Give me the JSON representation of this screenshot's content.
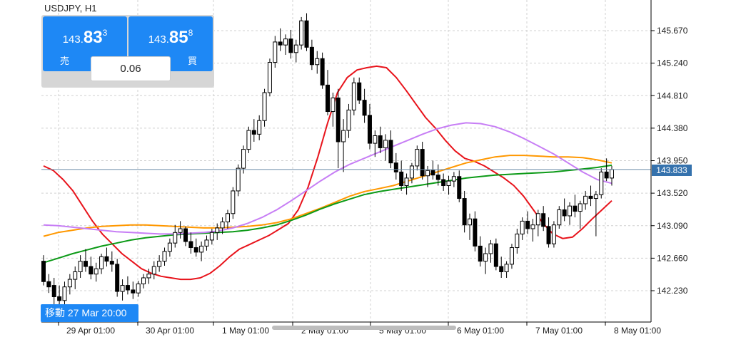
{
  "symbol": "USDJPY, H1",
  "trade_panel": {
    "sell": {
      "price_small": "143.",
      "price_big": "83",
      "price_sup": "3",
      "label": "売"
    },
    "buy": {
      "price_small": "143.",
      "price_big": "85",
      "price_sup": "8",
      "label": "買"
    },
    "volume": "0.06"
  },
  "crosshair_badge": "移動 27 Mar 20:00",
  "current_price_label": "143.833",
  "colors": {
    "bull_candle": "#ffffff",
    "bear_candle": "#000000",
    "accent_blue": "#1e88f5",
    "ma_red": "#e8131b",
    "ma_orange": "#ff9800",
    "ma_green": "#0c9a17",
    "ma_violet": "#c77ef5",
    "grid": "#d0d0d0",
    "bid_line": "#6b8aa6"
  },
  "chart_data": {
    "type": "candlestick",
    "y_ticks": [
      "145.670",
      "145.240",
      "144.810",
      "144.380",
      "143.950",
      "143.520",
      "143.090",
      "142.660",
      "142.230"
    ],
    "x_ticks": [
      "29 Apr 01:00",
      "30 Apr 01:00",
      "1 May 01:00",
      "2 May 01:00",
      "5 May 01:00",
      "6 May 01:00",
      "7 May 01:00",
      "8 May 01:00"
    ],
    "ylim": [
      141.9,
      146.0
    ],
    "current_price": 143.833,
    "grid": true,
    "candles": [
      [
        142.62,
        142.7,
        142.3,
        142.35
      ],
      [
        142.35,
        142.45,
        142.2,
        142.28
      ],
      [
        142.3,
        142.4,
        142.05,
        142.15
      ],
      [
        142.15,
        142.3,
        142.05,
        142.1
      ],
      [
        142.1,
        142.35,
        142.05,
        142.28
      ],
      [
        142.28,
        142.45,
        142.18,
        142.38
      ],
      [
        142.38,
        142.55,
        142.25,
        142.48
      ],
      [
        142.48,
        142.7,
        142.4,
        142.62
      ],
      [
        142.62,
        142.78,
        142.48,
        142.55
      ],
      [
        142.55,
        142.68,
        142.38,
        142.45
      ],
      [
        142.45,
        142.6,
        142.35,
        142.52
      ],
      [
        142.52,
        142.72,
        142.45,
        142.68
      ],
      [
        142.68,
        142.8,
        142.55,
        142.62
      ],
      [
        142.62,
        142.75,
        142.48,
        142.58
      ],
      [
        142.58,
        142.65,
        142.15,
        142.22
      ],
      [
        142.22,
        142.38,
        142.1,
        142.3
      ],
      [
        142.3,
        142.42,
        142.18,
        142.24
      ],
      [
        142.24,
        142.35,
        142.12,
        142.2
      ],
      [
        142.2,
        142.36,
        142.15,
        142.32
      ],
      [
        142.32,
        142.45,
        142.26,
        142.4
      ],
      [
        142.4,
        142.52,
        142.32,
        142.45
      ],
      [
        142.45,
        142.62,
        142.38,
        142.55
      ],
      [
        142.55,
        142.7,
        142.48,
        142.62
      ],
      [
        142.62,
        142.8,
        142.56,
        142.75
      ],
      [
        142.75,
        142.92,
        142.68,
        142.86
      ],
      [
        142.86,
        143.1,
        142.8,
        143.0
      ],
      [
        143.0,
        143.15,
        142.92,
        143.05
      ],
      [
        143.05,
        143.08,
        142.82,
        142.88
      ],
      [
        142.88,
        143.0,
        142.72,
        142.8
      ],
      [
        142.8,
        142.92,
        142.68,
        142.74
      ],
      [
        142.74,
        142.88,
        142.62,
        142.82
      ],
      [
        142.82,
        142.96,
        142.76,
        142.9
      ],
      [
        142.9,
        143.05,
        142.84,
        143.0
      ],
      [
        143.0,
        143.12,
        142.9,
        143.06
      ],
      [
        143.06,
        143.2,
        142.98,
        143.14
      ],
      [
        143.14,
        143.3,
        143.05,
        143.25
      ],
      [
        143.25,
        143.6,
        143.18,
        143.55
      ],
      [
        143.55,
        143.9,
        143.48,
        143.85
      ],
      [
        143.85,
        144.15,
        143.78,
        144.1
      ],
      [
        144.1,
        144.4,
        144.05,
        144.35
      ],
      [
        144.35,
        144.5,
        144.2,
        144.3
      ],
      [
        144.3,
        144.55,
        144.22,
        144.48
      ],
      [
        144.48,
        144.9,
        144.4,
        144.85
      ],
      [
        144.85,
        145.3,
        144.8,
        145.25
      ],
      [
        145.25,
        145.6,
        145.18,
        145.52
      ],
      [
        145.52,
        145.7,
        145.4,
        145.48
      ],
      [
        145.48,
        145.62,
        145.35,
        145.56
      ],
      [
        145.56,
        145.68,
        145.3,
        145.38
      ],
      [
        145.38,
        145.55,
        145.25,
        145.48
      ],
      [
        145.48,
        145.85,
        145.42,
        145.8
      ],
      [
        145.8,
        145.9,
        145.4,
        145.45
      ],
      [
        145.45,
        145.55,
        145.15,
        145.22
      ],
      [
        145.22,
        145.4,
        145.1,
        145.3
      ],
      [
        145.3,
        145.38,
        144.9,
        144.95
      ],
      [
        144.95,
        145.15,
        144.55,
        144.6
      ],
      [
        144.6,
        144.85,
        144.4,
        144.78
      ],
      [
        144.78,
        144.9,
        143.85,
        144.2
      ],
      [
        144.2,
        144.5,
        143.8,
        144.35
      ],
      [
        144.35,
        144.7,
        144.25,
        144.62
      ],
      [
        144.62,
        145.05,
        144.55,
        144.98
      ],
      [
        144.98,
        145.05,
        144.7,
        144.75
      ],
      [
        144.75,
        144.9,
        144.45,
        144.55
      ],
      [
        144.55,
        144.7,
        144.1,
        144.18
      ],
      [
        144.18,
        144.35,
        144.0,
        144.28
      ],
      [
        144.28,
        144.4,
        144.05,
        144.12
      ],
      [
        144.12,
        144.3,
        143.95,
        144.22
      ],
      [
        144.22,
        144.35,
        143.85,
        143.92
      ],
      [
        143.92,
        144.05,
        143.7,
        143.8
      ],
      [
        143.8,
        143.95,
        143.55,
        143.62
      ],
      [
        143.62,
        143.78,
        143.5,
        143.72
      ],
      [
        143.72,
        143.92,
        143.65,
        143.88
      ],
      [
        143.88,
        144.15,
        143.82,
        144.1
      ],
      [
        144.1,
        144.2,
        143.7,
        143.75
      ],
      [
        143.75,
        143.88,
        143.6,
        143.82
      ],
      [
        143.82,
        143.95,
        143.7,
        143.76
      ],
      [
        143.76,
        143.9,
        143.62,
        143.7
      ],
      [
        143.7,
        143.78,
        143.55,
        143.62
      ],
      [
        143.62,
        143.75,
        143.5,
        143.68
      ],
      [
        143.68,
        143.8,
        143.6,
        143.74
      ],
      [
        143.74,
        143.82,
        143.4,
        143.45
      ],
      [
        143.45,
        143.55,
        143.0,
        143.1
      ],
      [
        143.1,
        143.25,
        142.9,
        143.18
      ],
      [
        143.18,
        143.28,
        142.75,
        142.82
      ],
      [
        142.82,
        142.95,
        142.55,
        142.62
      ],
      [
        142.62,
        142.8,
        142.45,
        142.72
      ],
      [
        142.72,
        142.9,
        142.6,
        142.85
      ],
      [
        142.85,
        142.92,
        142.5,
        142.55
      ],
      [
        142.55,
        142.68,
        142.4,
        142.48
      ],
      [
        142.48,
        142.62,
        142.4,
        142.58
      ],
      [
        142.58,
        142.85,
        142.52,
        142.8
      ],
      [
        142.8,
        143.05,
        142.72,
        142.98
      ],
      [
        142.98,
        143.2,
        142.9,
        143.15
      ],
      [
        143.15,
        143.28,
        142.98,
        143.05
      ],
      [
        143.05,
        143.18,
        142.88,
        143.1
      ],
      [
        143.1,
        143.3,
        142.95,
        143.25
      ],
      [
        143.25,
        143.35,
        143.02,
        143.08
      ],
      [
        143.08,
        143.2,
        142.8,
        142.85
      ],
      [
        142.85,
        143.15,
        142.8,
        143.1
      ],
      [
        143.1,
        143.35,
        143.05,
        143.3
      ],
      [
        143.3,
        143.45,
        143.15,
        143.22
      ],
      [
        143.22,
        143.4,
        143.1,
        143.35
      ],
      [
        143.35,
        143.5,
        143.2,
        143.28
      ],
      [
        143.28,
        143.42,
        143.05,
        143.38
      ],
      [
        143.38,
        143.55,
        143.3,
        143.48
      ],
      [
        143.48,
        143.62,
        143.35,
        143.45
      ],
      [
        143.45,
        143.55,
        142.95,
        143.5
      ],
      [
        143.5,
        143.85,
        143.45,
        143.8
      ],
      [
        143.8,
        143.98,
        143.68,
        143.72
      ],
      [
        143.72,
        143.88,
        143.62,
        143.833
      ]
    ],
    "series": [
      {
        "name": "",
        "color": "#e8131b",
        "values": [
          143.88,
          143.82,
          143.7,
          143.55,
          143.35,
          143.15,
          142.98,
          142.85,
          142.72,
          142.62,
          142.52,
          142.46,
          142.42,
          142.4,
          142.38,
          142.38,
          142.4,
          142.46,
          142.56,
          142.68,
          142.78,
          142.84,
          142.9,
          142.96,
          143.04,
          143.12,
          143.3,
          143.6,
          144.0,
          144.45,
          144.85,
          145.05,
          145.15,
          145.18,
          145.2,
          145.18,
          145.05,
          144.88,
          144.7,
          144.52,
          144.38,
          144.22,
          144.08,
          143.98,
          143.94,
          143.88,
          143.8,
          143.72,
          143.62,
          143.48,
          143.3,
          143.12,
          142.98,
          142.92,
          142.94,
          143.05,
          143.18,
          143.3,
          143.42
        ]
      },
      {
        "name": "",
        "color": "#ff9800",
        "values": [
          142.95,
          143.0,
          143.03,
          143.06,
          143.08,
          143.09,
          143.1,
          143.1,
          143.09,
          143.08,
          143.07,
          143.06,
          143.06,
          143.07,
          143.08,
          143.1,
          143.13,
          143.18,
          143.25,
          143.32,
          143.4,
          143.48,
          143.54,
          143.58,
          143.62,
          143.68,
          143.74,
          143.8,
          143.86,
          143.92,
          143.96,
          144.0,
          144.02,
          144.02,
          144.01,
          144.0,
          144.0,
          143.99,
          143.96,
          143.92
        ]
      },
      {
        "name": "",
        "color": "#0c9a17",
        "values": [
          142.6,
          142.66,
          142.72,
          142.77,
          142.82,
          142.86,
          142.9,
          142.93,
          142.95,
          142.97,
          142.98,
          142.99,
          143.0,
          143.01,
          143.03,
          143.06,
          143.1,
          143.16,
          143.23,
          143.31,
          143.38,
          143.44,
          143.5,
          143.54,
          143.57,
          143.6,
          143.63,
          143.66,
          143.69,
          143.72,
          143.74,
          143.76,
          143.77,
          143.78,
          143.79,
          143.8,
          143.82,
          143.84,
          143.86,
          143.89
        ]
      },
      {
        "name": "",
        "color": "#c77ef5",
        "values": [
          143.1,
          143.09,
          143.07,
          143.05,
          143.03,
          143.01,
          143.0,
          142.99,
          142.98,
          142.98,
          142.99,
          143.0,
          143.02,
          143.06,
          143.12,
          143.2,
          143.3,
          143.42,
          143.55,
          143.68,
          143.8,
          143.9,
          143.98,
          144.06,
          144.14,
          144.22,
          144.3,
          144.37,
          144.42,
          144.45,
          144.44,
          144.4,
          144.33,
          144.24,
          144.14,
          144.04,
          143.92,
          143.8,
          143.7,
          143.65
        ]
      }
    ]
  }
}
